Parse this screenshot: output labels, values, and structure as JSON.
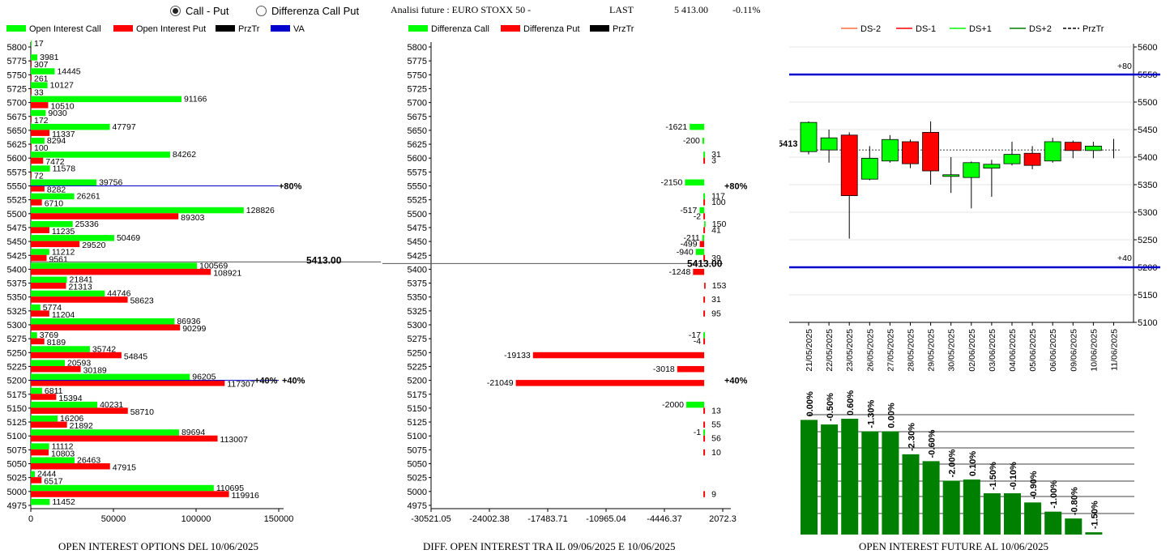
{
  "controls": {
    "radio_call_put": "Call - Put",
    "radio_diff": "Differenza Call Put",
    "selected": "call_put"
  },
  "header": {
    "title": "Analisi future : EURO STOXX 50 -",
    "last_label": "LAST",
    "last_value": "5 413.00",
    "change": "-0.11%"
  },
  "colors": {
    "green": "#00ff00",
    "red": "#ff0000",
    "dark_green": "#008000",
    "blue": "#0000cc",
    "black": "#000000"
  },
  "footers": {
    "left": "OPEN INTEREST OPTIONS DEL 10/06/2025",
    "middle": "DIFF. OPEN INTEREST TRA IL 09/06/2025 E 10/06/2025",
    "right": "OPEN INTEREST FUTURE AL 10/06/2025"
  },
  "chart_data": [
    {
      "type": "bar",
      "orientation": "horizontal",
      "legend": [
        "Open Interest Call",
        "Open Interest Put",
        "PrzTr",
        "VA"
      ],
      "categories": [
        "5800",
        "5775",
        "5750",
        "5725",
        "5700",
        "5675",
        "5650",
        "5625",
        "5600",
        "5575",
        "5550",
        "5525",
        "5500",
        "5475",
        "5450",
        "5425",
        "5400",
        "5375",
        "5350",
        "5325",
        "5300",
        "5275",
        "5250",
        "5225",
        "5200",
        "5175",
        "5150",
        "5125",
        "5100",
        "5075",
        "5050",
        "5025",
        "5000",
        "4975"
      ],
      "series": [
        {
          "name": "Open Interest Call",
          "values": [
            17,
            3981,
            14445,
            10127,
            91166,
            9030,
            47797,
            8294,
            84262,
            11578,
            39756,
            26261,
            128826,
            25336,
            50469,
            11212,
            100569,
            21841,
            44746,
            5774,
            86936,
            3769,
            35742,
            20593,
            96205,
            6811,
            40231,
            16206,
            89694,
            11112,
            26463,
            2444,
            110695,
            11452
          ]
        },
        {
          "name": "Open Interest Put",
          "values": [
            null,
            307,
            261,
            33,
            10510,
            172,
            11337,
            100,
            7472,
            72,
            8282,
            6710,
            89303,
            11235,
            29520,
            9561,
            108921,
            21313,
            58623,
            11204,
            90299,
            8189,
            54845,
            30189,
            117307,
            15394,
            58710,
            21892,
            113007,
            10803,
            47915,
            6517,
            119916,
            null
          ]
        }
      ],
      "x_ticks": [
        "0",
        "50000",
        "100000",
        "150000"
      ],
      "xlim": [
        0,
        160000
      ],
      "price_line": {
        "level": "5413",
        "label": "5413.00"
      },
      "va_line": {
        "level": "5550",
        "label": "+80%"
      },
      "va_line_2": {
        "level": "5200",
        "label": "+40%"
      },
      "extra_label_5200": "+40%"
    },
    {
      "type": "bar",
      "orientation": "horizontal",
      "legend": [
        "Differenza Call",
        "Differenza Put",
        "PrzTr"
      ],
      "categories": [
        "5800",
        "5775",
        "5750",
        "5725",
        "5700",
        "5675",
        "5650",
        "5625",
        "5600",
        "5575",
        "5550",
        "5525",
        "5500",
        "5475",
        "5450",
        "5425",
        "5400",
        "5375",
        "5350",
        "5325",
        "5300",
        "5275",
        "5250",
        "5225",
        "5200",
        "5175",
        "5150",
        "5125",
        "5100",
        "5075",
        "5050",
        "5025",
        "5000",
        "4975"
      ],
      "series": [
        {
          "name": "Differenza Call",
          "values": [
            null,
            null,
            null,
            null,
            null,
            null,
            -1621,
            -200,
            31,
            null,
            -2150,
            117,
            -517,
            150,
            -211,
            -940,
            null,
            null,
            null,
            null,
            null,
            -17,
            null,
            null,
            null,
            null,
            -2000,
            null,
            -1,
            null,
            null,
            null,
            null,
            null
          ]
        },
        {
          "name": "Differenza Put",
          "values": [
            null,
            null,
            null,
            null,
            null,
            null,
            null,
            null,
            3,
            null,
            null,
            100,
            -2,
            41,
            -499,
            39,
            -1248,
            153,
            31,
            95,
            null,
            -4,
            -19133,
            -3018,
            -21049,
            null,
            13,
            55,
            56,
            10,
            null,
            null,
            9,
            null
          ]
        }
      ],
      "x_ticks": [
        "-30521.05",
        "-24002.38",
        "-17483.71",
        "-10965.04",
        "-4446.37",
        "2072.3"
      ],
      "xlim": [
        -30521.05,
        2072.3
      ],
      "price_line": {
        "level": "5413",
        "label": "5413.00"
      },
      "va_line": {
        "level": "5550",
        "label": "+80%"
      },
      "va_line_2": {
        "level": "5200",
        "label": "+40%"
      }
    },
    {
      "type": "candlestick",
      "legend": [
        "DS-2",
        "DS-1",
        "DS+1",
        "DS+2",
        "PrzTr"
      ],
      "categories": [
        "21/05/2025",
        "22/05/2025",
        "23/05/2025",
        "26/05/2025",
        "27/05/2025",
        "28/05/2025",
        "29/05/2025",
        "30/05/2025",
        "02/06/2025",
        "03/06/2025",
        "04/06/2025",
        "05/06/2025",
        "06/06/2025",
        "09/06/2025",
        "10/06/2025",
        "11/06/2025"
      ],
      "ohlc": [
        {
          "o": 5410,
          "h": 5465,
          "l": 5405,
          "c": 5463
        },
        {
          "o": 5413,
          "h": 5450,
          "l": 5390,
          "c": 5435
        },
        {
          "o": 5440,
          "h": 5445,
          "l": 5252,
          "c": 5330
        },
        {
          "o": 5360,
          "h": 5420,
          "l": 5358,
          "c": 5398
        },
        {
          "o": 5393,
          "h": 5440,
          "l": 5390,
          "c": 5432
        },
        {
          "o": 5428,
          "h": 5432,
          "l": 5380,
          "c": 5388
        },
        {
          "o": 5445,
          "h": 5465,
          "l": 5350,
          "c": 5375
        },
        {
          "o": 5365,
          "h": 5400,
          "l": 5335,
          "c": 5368
        },
        {
          "o": 5363,
          "h": 5392,
          "l": 5307,
          "c": 5390
        },
        {
          "o": 5380,
          "h": 5395,
          "l": 5328,
          "c": 5387
        },
        {
          "o": 5388,
          "h": 5428,
          "l": 5385,
          "c": 5405
        },
        {
          "o": 5407,
          "h": 5420,
          "l": 5378,
          "c": 5385
        },
        {
          "o": 5393,
          "h": 5435,
          "l": 5390,
          "c": 5428
        },
        {
          "o": 5427,
          "h": 5430,
          "l": 5398,
          "c": 5412
        },
        {
          "o": 5412,
          "h": 5428,
          "l": 5398,
          "c": 5420
        },
        {
          "o": null,
          "h": 5433,
          "l": 5398,
          "c": null
        }
      ],
      "y_ticks": [
        "5600",
        "5550",
        "5500",
        "5450",
        "5400",
        "5350",
        "5300",
        "5250",
        "5200",
        "5150",
        "5100"
      ],
      "ylim": [
        5100,
        5600
      ],
      "last_label": "5413",
      "last_value": 5413,
      "upper_line": {
        "value": 5550,
        "label": "+80"
      },
      "lower_line": {
        "value": 5200,
        "label": "+40"
      }
    },
    {
      "type": "bar",
      "labels": [
        "0.00%",
        "-0.50%",
        "0.60%",
        "-1.30%",
        "0.00%",
        "-2.30%",
        "-0.60%",
        "-2.00%",
        "0.10%",
        "-1.50%",
        "-0.10%",
        "-0.90%",
        "-1.00%",
        "-0.80%",
        "-1.50%"
      ],
      "values": [
        100,
        96,
        101,
        90,
        90,
        70,
        64,
        47,
        48,
        36,
        36,
        28,
        20,
        14,
        2
      ]
    }
  ]
}
